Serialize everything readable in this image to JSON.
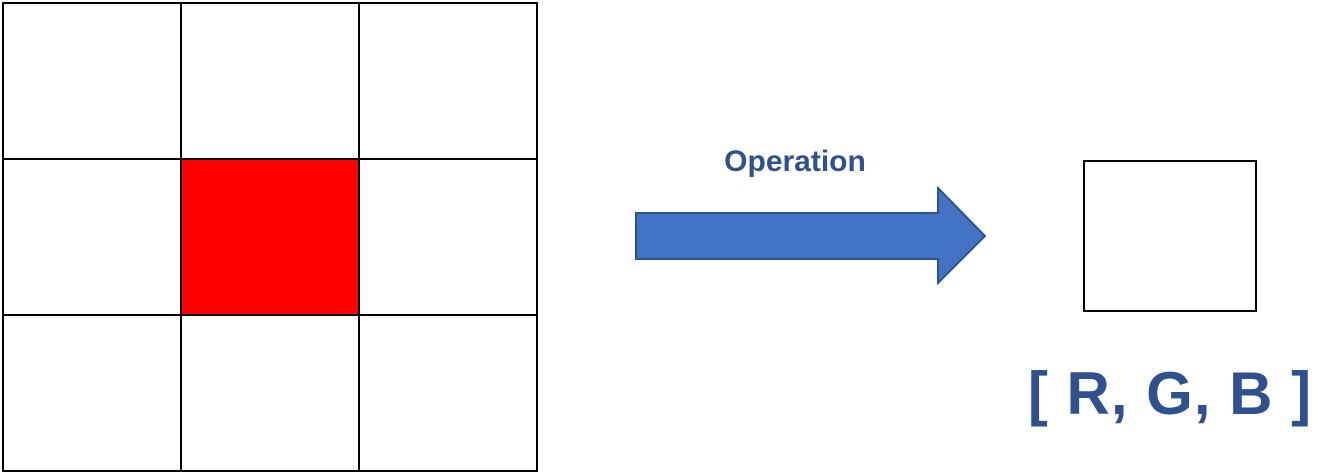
{
  "diagram": {
    "grid": {
      "rows": 3,
      "columns": 3,
      "highlighted_cell": {
        "row": 1,
        "column": 1
      },
      "highlight_color": "#ff0000",
      "cell_color": "#ffffff",
      "line_color": "#000000"
    },
    "arrow": {
      "label": "Operation",
      "fill_color": "#4472c4",
      "stroke_color": "#2f528f"
    },
    "output": {
      "label": "[ R, G, B ]",
      "text_color": "#2f528f",
      "cell_color": "#ffffff"
    }
  }
}
